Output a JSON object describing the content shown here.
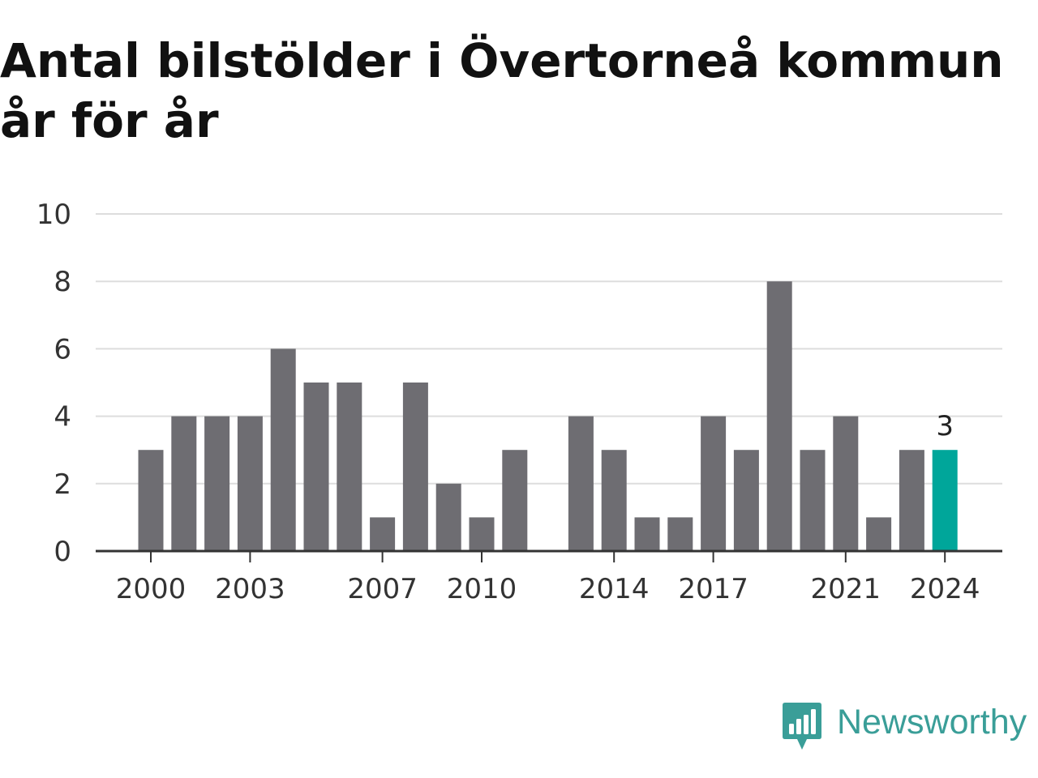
{
  "title": "Antal bilstölder i Övertorneå kommun år för år",
  "brand": {
    "name": "Newsworthy",
    "icon": "newsworthy-logo-icon",
    "color": "#3a9e98"
  },
  "colors": {
    "bar": "#6e6d72",
    "highlight": "#00a69a",
    "grid": "#dddddd",
    "axis": "#333333"
  },
  "chart_data": {
    "type": "bar",
    "x": [
      2000,
      2001,
      2002,
      2003,
      2004,
      2005,
      2006,
      2007,
      2008,
      2009,
      2010,
      2011,
      2012,
      2013,
      2014,
      2015,
      2016,
      2017,
      2018,
      2019,
      2020,
      2021,
      2022,
      2023,
      2024
    ],
    "values": [
      3,
      4,
      4,
      4,
      6,
      5,
      5,
      1,
      5,
      2,
      1,
      3,
      0,
      4,
      3,
      1,
      1,
      4,
      3,
      8,
      3,
      4,
      1,
      3,
      3
    ],
    "ylim": [
      0,
      10
    ],
    "yticks": [
      0,
      2,
      4,
      6,
      8,
      10
    ],
    "xticks": [
      2000,
      2003,
      2007,
      2010,
      2014,
      2017,
      2021,
      2024
    ],
    "highlight": 2024,
    "annotation": {
      "x": 2024,
      "label": "3"
    },
    "grid": true,
    "legend": "none"
  }
}
